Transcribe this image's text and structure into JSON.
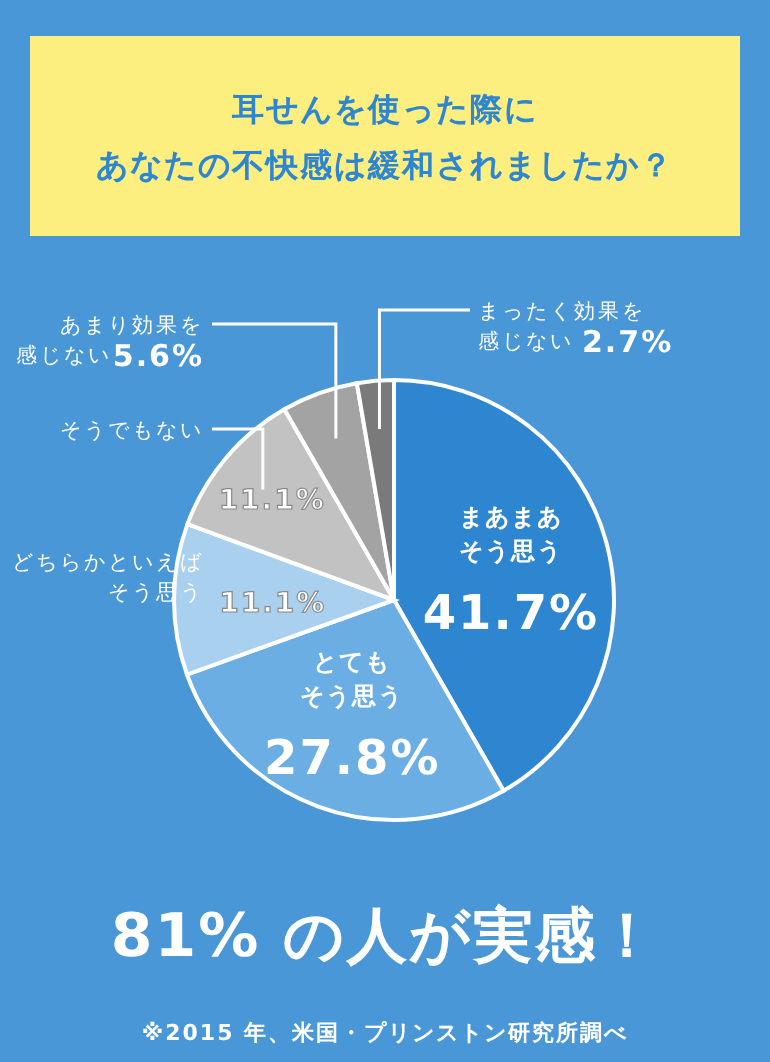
{
  "chart_data": {
    "type": "pie",
    "title": "耳せんを使った際にあなたの不快感は緩和されましたか？",
    "categories": [
      "まあまあそう思う",
      "とてもそう思う",
      "どちらかといえばそう思う",
      "そうでもない",
      "あまり効果を感じない",
      "まったく効果を感じない"
    ],
    "values": [
      41.7,
      27.8,
      11.1,
      11.1,
      5.6,
      2.7
    ],
    "value_labels": [
      "41.7%",
      "27.8%",
      "11.1%",
      "11.1%",
      "5.6%",
      "2.7%"
    ],
    "colors": [
      "#2f86d0",
      "#6aaee3",
      "#a9d0ef",
      "#c2c2c2",
      "#a3a3a3",
      "#7a7a7a"
    ],
    "annotations": [
      "81% の人が実感！",
      "※2015 年、米国・プリンストン研究所調べ"
    ]
  }
}
